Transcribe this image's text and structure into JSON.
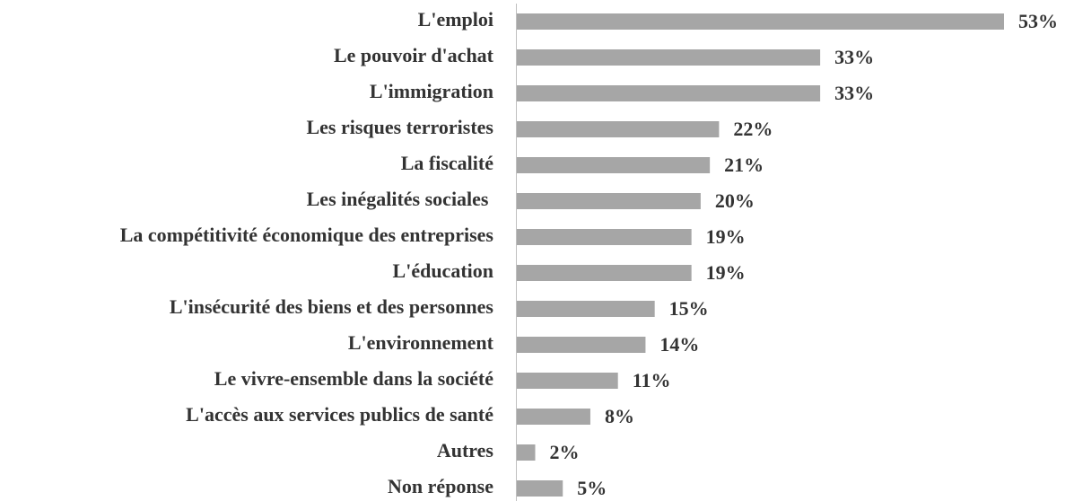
{
  "chart_data": {
    "type": "bar",
    "orientation": "horizontal",
    "categories": [
      "L'emploi",
      "Le pouvoir d'achat",
      "L'immigration",
      "Les risques terroristes",
      "La fiscalité",
      "Les inégalités sociales ",
      "La compétitivité économique des entreprises",
      "L'éducation",
      "L'insécurité des biens et des personnes",
      "L'environnement",
      "Le vivre-ensemble dans la société",
      "L'accès aux services publics de santé",
      "Autres",
      "Non réponse"
    ],
    "values": [
      53,
      33,
      33,
      22,
      21,
      20,
      19,
      19,
      15,
      14,
      11,
      8,
      2,
      5
    ],
    "value_labels": [
      "53%",
      "33%",
      "33%",
      "22%",
      "21%",
      "20%",
      "19%",
      "19%",
      "15%",
      "14%",
      "11%",
      "8%",
      "2%",
      "5%"
    ],
    "color": "#a6a6a6"
  }
}
